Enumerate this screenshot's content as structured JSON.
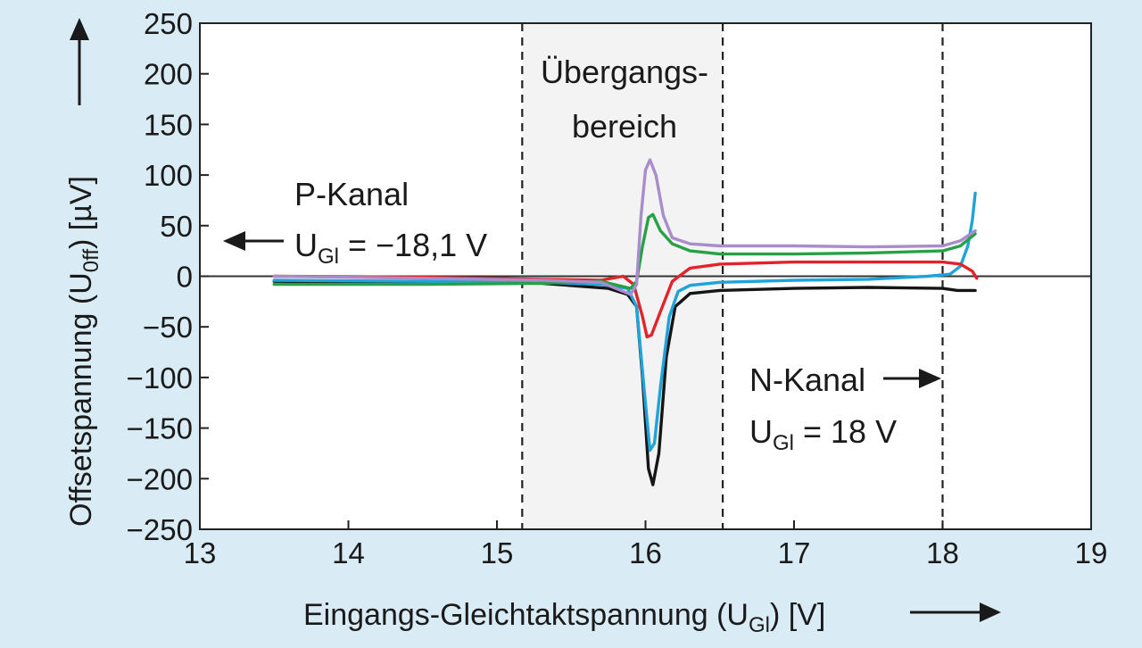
{
  "colors": {
    "background": "#d9ebf5",
    "plot_area": "#ffffff",
    "region_shade": "#f2f3f2",
    "black": "#151515",
    "blue": "#1ea3db",
    "red": "#e2242a",
    "green": "#27a046",
    "purple": "#a98ccb"
  },
  "chart_data": {
    "type": "line",
    "xlabel": {
      "main": "Eingangs-Gleichtaktspannung (U",
      "sub": "Gl",
      "tail": ") [V]"
    },
    "ylabel": {
      "main": "Offsetspannung (U",
      "sub": "0ff",
      "tail": ") [µV]"
    },
    "xlim": [
      13,
      19
    ],
    "ylim": [
      -250,
      250
    ],
    "x_ticks": [
      "13",
      "14",
      "15",
      "16",
      "17",
      "18",
      "19"
    ],
    "y_ticks": [
      "250",
      "200",
      "150",
      "100",
      "50",
      "0",
      "−50",
      "−100",
      "−150",
      "−200",
      "−250"
    ],
    "grid": false,
    "zero_line": true,
    "vertical_markers": [
      15.17,
      16.52,
      18.0
    ],
    "shaded_region": [
      15.17,
      16.52
    ],
    "annotations": {
      "transition_line1": "Übergangs-",
      "transition_line2": "bereich",
      "p_channel_line1": "P-Kanal",
      "p_channel_u": "U",
      "p_channel_sub": "Gl",
      "p_channel_value": " = −18,1 V",
      "n_channel_line1": "N-Kanal",
      "n_channel_u": "U",
      "n_channel_sub": "Gl",
      "n_channel_value": " = 18 V"
    },
    "series": [
      {
        "color_key": "black",
        "points": [
          [
            13.5,
            -5
          ],
          [
            14.5,
            -6
          ],
          [
            15.3,
            -7
          ],
          [
            15.75,
            -12
          ],
          [
            15.88,
            -18
          ],
          [
            15.94,
            -30
          ],
          [
            15.98,
            -100
          ],
          [
            16.02,
            -190
          ],
          [
            16.05,
            -206
          ],
          [
            16.09,
            -175
          ],
          [
            16.14,
            -80
          ],
          [
            16.2,
            -30
          ],
          [
            16.3,
            -17
          ],
          [
            16.5,
            -14
          ],
          [
            17.0,
            -12
          ],
          [
            17.5,
            -11
          ],
          [
            18.0,
            -12
          ],
          [
            18.1,
            -14
          ],
          [
            18.22,
            -14
          ]
        ]
      },
      {
        "color_key": "blue",
        "points": [
          [
            13.5,
            -4
          ],
          [
            14.5,
            -5
          ],
          [
            15.3,
            -6
          ],
          [
            15.7,
            -8
          ],
          [
            15.88,
            -12
          ],
          [
            15.94,
            -30
          ],
          [
            15.99,
            -110
          ],
          [
            16.03,
            -172
          ],
          [
            16.06,
            -165
          ],
          [
            16.1,
            -110
          ],
          [
            16.16,
            -40
          ],
          [
            16.22,
            -15
          ],
          [
            16.3,
            -9
          ],
          [
            16.5,
            -6
          ],
          [
            17.0,
            -4
          ],
          [
            17.5,
            -3
          ],
          [
            17.9,
            0
          ],
          [
            18.05,
            2
          ],
          [
            18.12,
            10
          ],
          [
            18.17,
            30
          ],
          [
            18.2,
            55
          ],
          [
            18.22,
            82
          ]
        ]
      },
      {
        "color_key": "red",
        "points": [
          [
            13.5,
            0
          ],
          [
            14.5,
            -1
          ],
          [
            15.3,
            -3
          ],
          [
            15.7,
            -4
          ],
          [
            15.85,
            0
          ],
          [
            15.92,
            -8
          ],
          [
            15.98,
            -40
          ],
          [
            16.01,
            -60
          ],
          [
            16.04,
            -58
          ],
          [
            16.1,
            -35
          ],
          [
            16.18,
            -5
          ],
          [
            16.3,
            8
          ],
          [
            16.5,
            12
          ],
          [
            17.0,
            14
          ],
          [
            17.5,
            14
          ],
          [
            18.0,
            14
          ],
          [
            18.12,
            12
          ],
          [
            18.2,
            5
          ],
          [
            18.23,
            -2
          ]
        ]
      },
      {
        "color_key": "green",
        "points": [
          [
            13.5,
            -8
          ],
          [
            14.5,
            -8
          ],
          [
            15.3,
            -7
          ],
          [
            15.7,
            -5
          ],
          [
            15.9,
            -12
          ],
          [
            15.94,
            -5
          ],
          [
            15.98,
            30
          ],
          [
            16.02,
            58
          ],
          [
            16.05,
            61
          ],
          [
            16.1,
            45
          ],
          [
            16.18,
            32
          ],
          [
            16.3,
            25
          ],
          [
            16.5,
            22
          ],
          [
            17.0,
            22
          ],
          [
            17.5,
            23
          ],
          [
            18.0,
            25
          ],
          [
            18.12,
            30
          ],
          [
            18.22,
            42
          ]
        ]
      },
      {
        "color_key": "purple",
        "points": [
          [
            13.5,
            0
          ],
          [
            14.5,
            -2
          ],
          [
            15.3,
            -4
          ],
          [
            15.7,
            -6
          ],
          [
            15.9,
            -18
          ],
          [
            15.94,
            -8
          ],
          [
            15.97,
            60
          ],
          [
            16.0,
            105
          ],
          [
            16.03,
            115
          ],
          [
            16.07,
            100
          ],
          [
            16.12,
            60
          ],
          [
            16.18,
            38
          ],
          [
            16.3,
            32
          ],
          [
            16.5,
            30
          ],
          [
            17.0,
            30
          ],
          [
            17.5,
            29
          ],
          [
            18.0,
            30
          ],
          [
            18.12,
            35
          ],
          [
            18.22,
            45
          ]
        ]
      }
    ]
  }
}
